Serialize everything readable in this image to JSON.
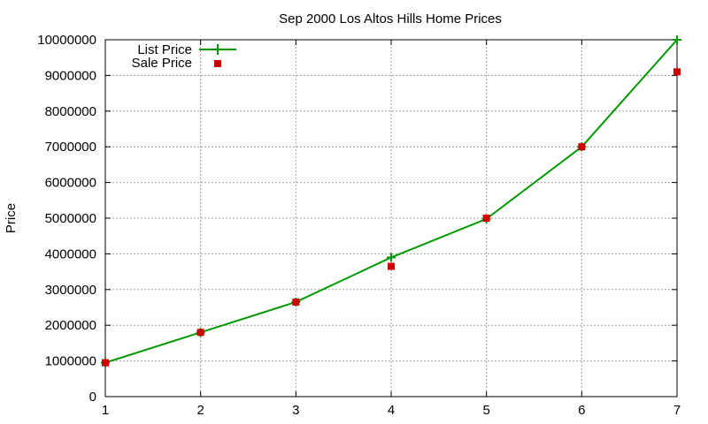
{
  "chart_data": {
    "type": "line",
    "title": "Sep 2000 Los Altos Hills Home Prices",
    "xlabel": "",
    "ylabel": "Price",
    "x": [
      1,
      2,
      3,
      4,
      5,
      6,
      7
    ],
    "xlim": [
      1,
      7
    ],
    "ylim": [
      0,
      10000000
    ],
    "x_ticks": [
      1,
      2,
      3,
      4,
      5,
      6,
      7
    ],
    "y_ticks": [
      0,
      1000000,
      2000000,
      3000000,
      4000000,
      5000000,
      6000000,
      7000000,
      8000000,
      9000000,
      10000000
    ],
    "x_tick_labels": [
      "1",
      "2",
      "3",
      "4",
      "5",
      "6",
      "7"
    ],
    "y_tick_labels": [
      "0",
      "1000000",
      "2000000",
      "3000000",
      "4000000",
      "5000000",
      "6000000",
      "7000000",
      "8000000",
      "9000000",
      "10000000"
    ],
    "grid": true,
    "legend_position": "top-left",
    "series": [
      {
        "name": "List Price",
        "style": "line-with-plus-markers",
        "color": "#009900",
        "values": [
          950000,
          1800000,
          2650000,
          3900000,
          4980000,
          7000000,
          10000000
        ]
      },
      {
        "name": "Sale Price",
        "style": "square-markers",
        "color": "#cc0000",
        "values": [
          950000,
          1800000,
          2650000,
          3650000,
          5000000,
          7000000,
          9100000
        ]
      }
    ]
  }
}
